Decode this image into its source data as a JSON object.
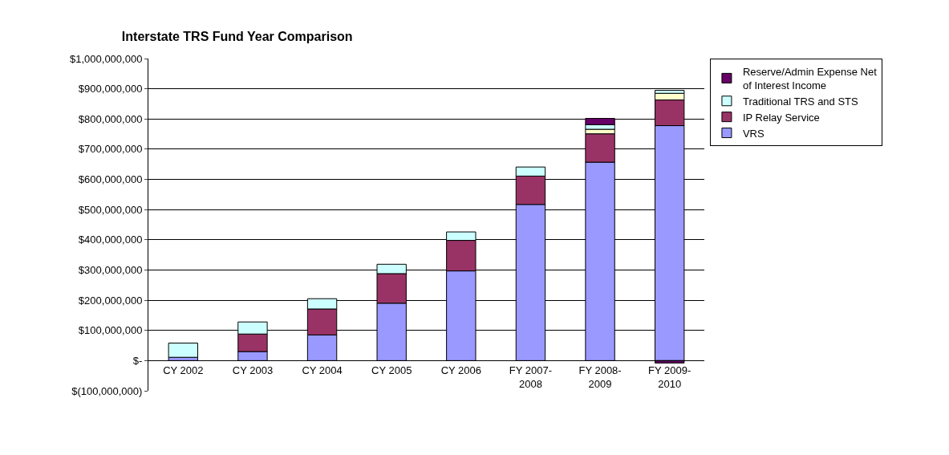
{
  "chart_data": {
    "type": "bar",
    "title": "Interstate TRS Fund Year Comparison",
    "categories": [
      "CY 2002",
      "CY 2003",
      "CY 2004",
      "CY 2005",
      "CY 2006",
      "FY 2007-2008",
      "FY 2008-2009",
      "FY 2009-2010"
    ],
    "stacked": true,
    "series": [
      {
        "name": "VRS",
        "color": "#9999ff",
        "values": [
          11000000,
          30000000,
          85000000,
          190000000,
          297000000,
          517000000,
          657000000,
          778000000
        ]
      },
      {
        "name": "IP Relay Service",
        "color": "#993366",
        "values": [
          null,
          58000000,
          86000000,
          98000000,
          101000000,
          94000000,
          94000000,
          85000000
        ]
      },
      {
        "color": "#ffffcc",
        "values": [
          null,
          null,
          null,
          null,
          null,
          null,
          15000000,
          22000000
        ]
      },
      {
        "name": "Traditional TRS and STS",
        "color": "#ccffff",
        "values": [
          47000000,
          40000000,
          34000000,
          31000000,
          28000000,
          30000000,
          15000000,
          10000000
        ]
      },
      {
        "name": "Reserve/Admin Expense Net of Interest Income",
        "color": "#660066",
        "values": [
          null,
          null,
          null,
          null,
          null,
          null,
          21000000,
          -8000000
        ]
      }
    ],
    "ylim": [
      -100000000,
      1000000000
    ],
    "yticks": [
      {
        "value": -100000000,
        "label": "$(100,000,000)"
      },
      {
        "value": 0,
        "label": "$-"
      },
      {
        "value": 100000000,
        "label": "$100,000,000"
      },
      {
        "value": 200000000,
        "label": "$200,000,000"
      },
      {
        "value": 300000000,
        "label": "$300,000,000"
      },
      {
        "value": 400000000,
        "label": "$400,000,000"
      },
      {
        "value": 500000000,
        "label": "$500,000,000"
      },
      {
        "value": 600000000,
        "label": "$600,000,000"
      },
      {
        "value": 700000000,
        "label": "$700,000,000"
      },
      {
        "value": 800000000,
        "label": "$800,000,000"
      },
      {
        "value": 900000000,
        "label": "$900,000,000"
      },
      {
        "value": 1000000000,
        "label": "$1,000,000,000"
      }
    ],
    "grid": "y",
    "legend": "right"
  }
}
